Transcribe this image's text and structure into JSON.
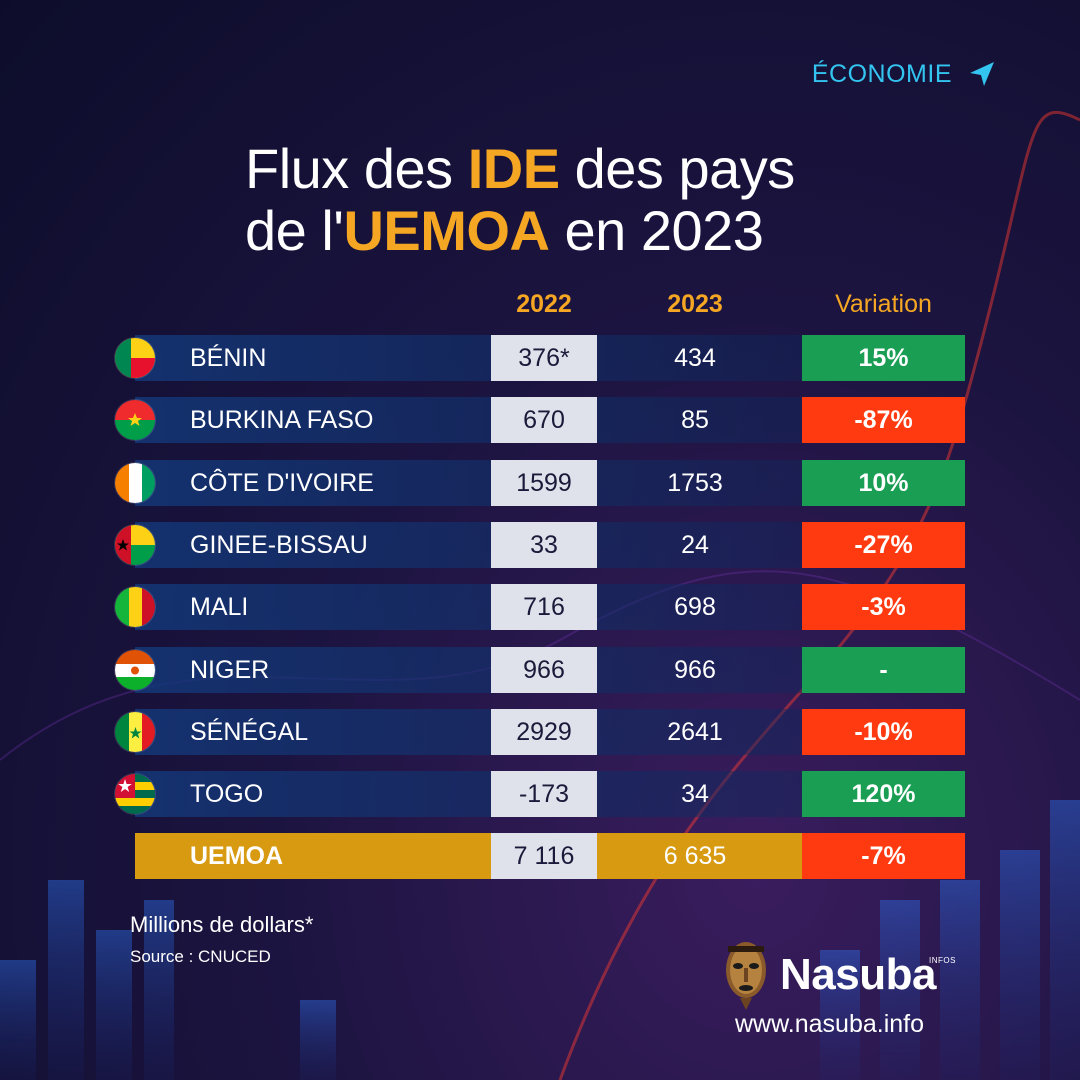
{
  "header": {
    "category": "ÉCONOMIE",
    "title_line1": {
      "pre": "Flux des ",
      "highlight": "IDE",
      "post": " des pays"
    },
    "title_line2": {
      "pre": "de l'",
      "highlight": "UEMOA",
      "post": " en 2023"
    }
  },
  "colors": {
    "accent": "#f5a623",
    "category": "#33c4f0",
    "positive": "#1a9e54",
    "negative": "#ff3a10",
    "total": "#d79a10",
    "cell_2022": "#dfe2ea"
  },
  "chart_data": {
    "type": "table",
    "title": "Flux des IDE des pays de l'UEMOA en 2023",
    "columns": [
      "",
      "2022",
      "2023",
      "Variation"
    ],
    "rows": [
      {
        "country": "BÉNIN",
        "y2022": "376*",
        "y2023": "434",
        "variation": "15%",
        "trend": "positive",
        "flag": "benin-flag-icon"
      },
      {
        "country": "BURKINA FASO",
        "y2022": "670",
        "y2023": "85",
        "variation": "-87%",
        "trend": "negative",
        "flag": "burkina-faso-flag-icon"
      },
      {
        "country": "CÔTE D'IVOIRE",
        "y2022": "1599",
        "y2023": "1753",
        "variation": "10%",
        "trend": "positive",
        "flag": "cote-divoire-flag-icon"
      },
      {
        "country": "GINEE-BISSAU",
        "y2022": "33",
        "y2023": "24",
        "variation": "-27%",
        "trend": "negative",
        "flag": "guinea-bissau-flag-icon"
      },
      {
        "country": "MALI",
        "y2022": "716",
        "y2023": "698",
        "variation": "-3%",
        "trend": "negative",
        "flag": "mali-flag-icon"
      },
      {
        "country": "NIGER",
        "y2022": "966",
        "y2023": "966",
        "variation": "-",
        "trend": "positive",
        "flag": "niger-flag-icon"
      },
      {
        "country": "SÉNÉGAL",
        "y2022": "2929",
        "y2023": "2641",
        "variation": "-10%",
        "trend": "negative",
        "flag": "senegal-flag-icon"
      },
      {
        "country": "TOGO",
        "y2022": "-173",
        "y2023": "34",
        "variation": "120%",
        "trend": "positive",
        "flag": "togo-flag-icon"
      }
    ],
    "total": {
      "country": "UEMOA",
      "y2022": "7 116",
      "y2023": "6 635",
      "variation": "-7%",
      "trend": "negative"
    }
  },
  "footer": {
    "units": "Millions de dollars*",
    "source": "Source : CNUCED",
    "brand": "Nasuba",
    "brand_sup": "INFOS",
    "url": "www.nasuba.info"
  }
}
